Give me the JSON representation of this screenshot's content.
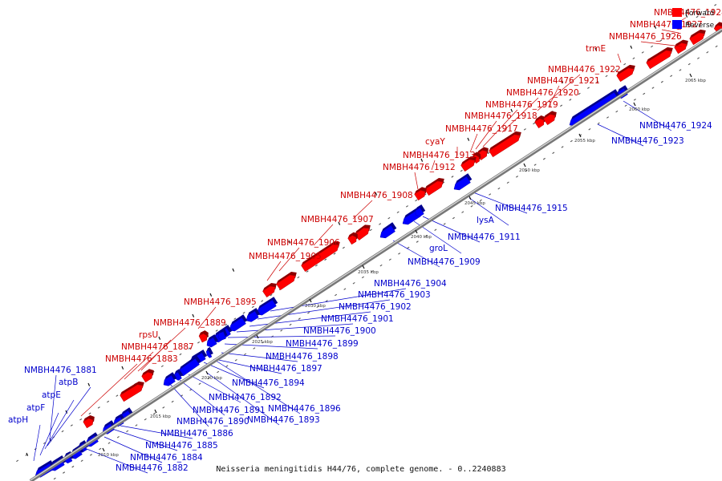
{
  "caption": "Neisseria meningitidis H44/76, complete genome. - 0..2240883",
  "colors": {
    "forward": "#ff0000",
    "reverse": "#0000ff",
    "axis": "#9a9a9a",
    "forward_label": "#cc0000",
    "reverse_label": "#0000cc"
  },
  "legend": {
    "forward": "Forward",
    "reverse": "Reverse"
  },
  "axis_ticks": [
    "2010 kbp",
    "2015 kbp",
    "2020 kbp",
    "2025 kbp",
    "2030 kbp",
    "2035 kbp",
    "2040 kbp",
    "2045 kbp",
    "2050 kbp",
    "2055 kbp",
    "2060 kbp",
    "2065 kbp"
  ],
  "forward_genes": [
    "NMBH4476_1928",
    "NMBH4476_1927",
    "NMBH4476_1926",
    "trmE",
    "NMBH4476_1922",
    "NMBH4476_1921",
    "NMBH4476_1920",
    "NMBH4476_1919",
    "NMBH4476_1918",
    "NMBH4476_1917",
    "cyaY",
    "NMBH4476_1913",
    "NMBH4476_1912",
    "NMBH4476_1908",
    "NMBH4476_1907",
    "NMBH4476_1906",
    "NMBH4476_1905",
    "NMBH4476_1895",
    "NMBH4476_1889",
    "rpsU",
    "NMBH4476_1887",
    "NMBH4476_1883"
  ],
  "reverse_genes": [
    "NMBH4476_1924",
    "NMBH4476_1923",
    "NMBH4476_1915",
    "lysA",
    "NMBH4476_1911",
    "groL",
    "NMBH4476_1909",
    "NMBH4476_1904",
    "NMBH4476_1903",
    "NMBH4476_1902",
    "NMBH4476_1901",
    "NMBH4476_1900",
    "NMBH4476_1899",
    "NMBH4476_1898",
    "NMBH4476_1897",
    "NMBH4476_1894",
    "NMBH4476_1892",
    "NMBH4476_1896",
    "NMBH4476_1891",
    "NMBH4476_1893",
    "NMBH4476_1890",
    "NMBH4476_1886",
    "NMBH4476_1885",
    "NMBH4476_1884",
    "NMBH4476_1882",
    "NMBH4476_1881",
    "atpB",
    "atpE",
    "atpF",
    "atpH"
  ]
}
